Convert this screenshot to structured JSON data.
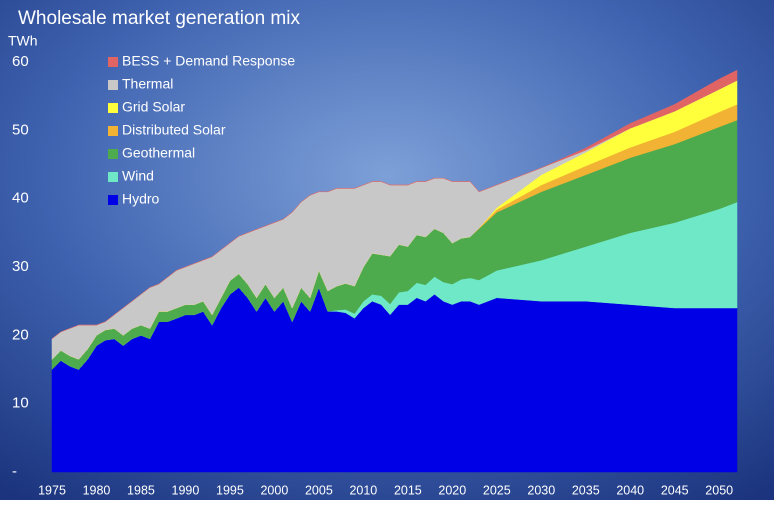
{
  "chart_data": {
    "type": "stacked-area",
    "title": "Wholesale market generation mix",
    "y_label": "TWh",
    "x": [
      1975,
      1976,
      1977,
      1978,
      1979,
      1980,
      1981,
      1982,
      1983,
      1984,
      1985,
      1986,
      1987,
      1988,
      1989,
      1990,
      1991,
      1992,
      1993,
      1994,
      1995,
      1996,
      1997,
      1998,
      1999,
      2000,
      2001,
      2002,
      2003,
      2004,
      2005,
      2006,
      2007,
      2008,
      2009,
      2010,
      2011,
      2012,
      2013,
      2014,
      2015,
      2016,
      2017,
      2018,
      2019,
      2020,
      2021,
      2022,
      2023,
      2025,
      2030,
      2035,
      2040,
      2045,
      2050,
      2052
    ],
    "xlim": [
      1975,
      2052
    ],
    "xticks": [
      1975,
      1980,
      1985,
      1990,
      1995,
      2000,
      2005,
      2010,
      2015,
      2020,
      2025,
      2030,
      2035,
      2040,
      2045,
      2050
    ],
    "ylim": [
      0,
      60
    ],
    "yticks": [
      {
        "value": 0,
        "label": "-"
      },
      10,
      20,
      30,
      40,
      50,
      60
    ],
    "legend": "top-left",
    "series": [
      {
        "name": "Hydro",
        "color": "#0000e6",
        "values": [
          15,
          16.3,
          15.5,
          15,
          16.5,
          18.5,
          19.3,
          19.5,
          18.5,
          19.5,
          20,
          19.5,
          22,
          22,
          22.5,
          23,
          23,
          23.5,
          21.5,
          24,
          26,
          27,
          25.5,
          23.5,
          25.5,
          23.5,
          25,
          22,
          25,
          23.5,
          27,
          23.5,
          23.5,
          23.3,
          22.5,
          24,
          25,
          24.5,
          23,
          24.5,
          24.5,
          25.5,
          25,
          26,
          25,
          24.5,
          25,
          25,
          24.5,
          25.5,
          25,
          25,
          24.5,
          24,
          24,
          24
        ]
      },
      {
        "name": "Wind",
        "color": "#6ee8c6",
        "values": [
          0,
          0,
          0,
          0,
          0,
          0,
          0,
          0,
          0,
          0,
          0,
          0,
          0,
          0,
          0,
          0,
          0,
          0,
          0,
          0,
          0,
          0,
          0,
          0,
          0,
          0,
          0,
          0,
          0,
          0,
          0,
          0,
          0.2,
          0.5,
          0.7,
          1,
          1,
          1.3,
          1.6,
          1.8,
          2,
          2.2,
          2.4,
          2.6,
          2.8,
          3,
          3.2,
          3.4,
          3.6,
          4,
          6,
          8,
          10.5,
          12.5,
          14.5,
          15.5
        ]
      },
      {
        "name": "Geothermal",
        "color": "#4daa4d",
        "values": [
          1.5,
          1.5,
          1.5,
          1.5,
          1.5,
          1.5,
          1.5,
          1.5,
          1.5,
          1.5,
          1.5,
          1.5,
          1.5,
          1.5,
          1.5,
          1.5,
          1.5,
          1.5,
          1.5,
          1.5,
          2,
          2,
          2,
          2,
          2,
          2,
          2,
          2,
          2,
          2,
          2.5,
          3,
          3.5,
          3.8,
          4,
          5,
          6,
          6,
          7,
          7,
          6.5,
          7,
          7,
          7,
          7.2,
          6,
          6,
          6,
          7.5,
          8.5,
          10,
          10.5,
          11,
          11.5,
          12,
          12
        ]
      },
      {
        "name": "Distributed Solar",
        "color": "#f2b233",
        "values": [
          0,
          0,
          0,
          0,
          0,
          0,
          0,
          0,
          0,
          0,
          0,
          0,
          0,
          0,
          0,
          0,
          0,
          0,
          0,
          0,
          0,
          0,
          0,
          0,
          0,
          0,
          0,
          0,
          0,
          0,
          0,
          0,
          0,
          0,
          0,
          0,
          0,
          0,
          0,
          0,
          0,
          0,
          0,
          0,
          0,
          0,
          0,
          0,
          0.1,
          0.4,
          1,
          1.3,
          1.5,
          1.8,
          2.2,
          2.3
        ]
      },
      {
        "name": "Grid Solar",
        "color": "#ffff3c",
        "values": [
          0,
          0,
          0,
          0,
          0,
          0,
          0,
          0,
          0,
          0,
          0,
          0,
          0,
          0,
          0,
          0,
          0,
          0,
          0,
          0,
          0,
          0,
          0,
          0,
          0,
          0,
          0,
          0,
          0,
          0,
          0,
          0,
          0,
          0,
          0,
          0,
          0,
          0,
          0,
          0,
          0,
          0,
          0,
          0,
          0,
          0,
          0,
          0,
          0,
          0.3,
          1.5,
          2,
          2.8,
          3,
          3.3,
          3.5
        ]
      },
      {
        "name": "Thermal",
        "color": "#c8c8c8",
        "values": [
          3,
          2.7,
          4,
          5,
          3.5,
          1.5,
          1.2,
          2,
          4,
          4,
          4.5,
          6,
          4,
          5,
          5.5,
          5.5,
          6,
          6,
          8.5,
          7,
          5.5,
          5.5,
          7.5,
          10,
          8.5,
          11,
          10,
          14,
          12.5,
          15,
          11.5,
          14.5,
          14.3,
          13.9,
          14.3,
          12,
          10.5,
          10.7,
          10.4,
          8.7,
          9,
          7.8,
          8.1,
          7.4,
          8,
          9,
          8.3,
          8.1,
          5.3,
          3.3,
          1,
          0.3,
          0,
          0,
          0,
          0
        ]
      },
      {
        "name": "BESS + Demand Response",
        "color": "#e06464",
        "values": [
          0,
          0,
          0,
          0,
          0,
          0,
          0,
          0,
          0,
          0,
          0,
          0,
          0,
          0,
          0,
          0,
          0,
          0,
          0,
          0,
          0,
          0,
          0,
          0,
          0,
          0,
          0,
          0,
          0,
          0,
          0,
          0,
          0,
          0,
          0,
          0,
          0,
          0,
          0,
          0,
          0,
          0,
          0,
          0,
          0,
          0,
          0,
          0,
          0,
          0,
          0,
          0.3,
          0.7,
          1,
          1.5,
          1.5
        ]
      }
    ]
  }
}
